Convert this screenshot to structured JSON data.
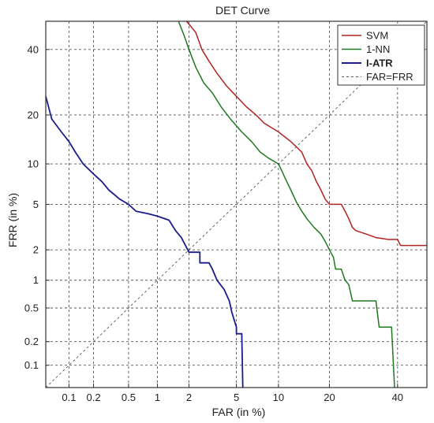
{
  "chart_data": {
    "type": "line",
    "title": "DET Curve",
    "xlabel": "FAR (in %)",
    "ylabel": "FRR (in %)",
    "x_scale": "normal-deviate",
    "y_scale": "normal-deviate",
    "xlim": [
      0.05,
      50
    ],
    "ylim": [
      0.05,
      50
    ],
    "x_ticks": [
      0.1,
      0.2,
      0.5,
      1,
      2,
      5,
      10,
      20,
      40
    ],
    "x_tick_labels": [
      "0.1",
      "0.2",
      "0.5",
      "1",
      "2",
      "5",
      "10",
      "20",
      "40"
    ],
    "y_ticks": [
      0.1,
      0.2,
      0.5,
      1,
      2,
      5,
      10,
      20,
      40
    ],
    "y_tick_labels": [
      "0.1",
      "0.2",
      "0.5",
      "1",
      "2",
      "5",
      "10",
      "20",
      "40"
    ],
    "grid": true,
    "legend_position": "top-right",
    "series": [
      {
        "name": "SVM",
        "color": "#b22222",
        "bold": false,
        "points": [
          [
            1.9,
            50
          ],
          [
            2.3,
            46
          ],
          [
            2.6,
            40
          ],
          [
            3.0,
            36
          ],
          [
            3.5,
            32
          ],
          [
            4.2,
            28
          ],
          [
            5.0,
            25
          ],
          [
            6.0,
            22
          ],
          [
            7.0,
            20
          ],
          [
            8.0,
            18
          ],
          [
            10.0,
            16
          ],
          [
            12.0,
            14
          ],
          [
            14.0,
            12
          ],
          [
            15.0,
            10
          ],
          [
            16.0,
            9
          ],
          [
            17.0,
            7.5
          ],
          [
            18.0,
            6.5
          ],
          [
            19.0,
            5.5
          ],
          [
            20.0,
            5.0
          ],
          [
            23.0,
            5.0
          ],
          [
            24.0,
            4.4
          ],
          [
            25.0,
            3.8
          ],
          [
            26.0,
            3.2
          ],
          [
            27.0,
            3.0
          ],
          [
            30.0,
            2.8
          ],
          [
            33.0,
            2.6
          ],
          [
            37.0,
            2.5
          ],
          [
            40.0,
            2.5
          ],
          [
            41.0,
            2.2
          ],
          [
            50.0,
            2.2
          ]
        ]
      },
      {
        "name": "1-NN",
        "color": "#1f7a1f",
        "bold": false,
        "points": [
          [
            1.6,
            50
          ],
          [
            1.8,
            45
          ],
          [
            2.0,
            40
          ],
          [
            2.3,
            34
          ],
          [
            2.7,
            29
          ],
          [
            3.2,
            26
          ],
          [
            3.8,
            22
          ],
          [
            4.5,
            19
          ],
          [
            5.5,
            16
          ],
          [
            6.5,
            14
          ],
          [
            7.5,
            12
          ],
          [
            8.5,
            11
          ],
          [
            10.0,
            10
          ],
          [
            10.5,
            9
          ],
          [
            11.0,
            8
          ],
          [
            12.0,
            6.5
          ],
          [
            13.0,
            5.2
          ],
          [
            14.0,
            4.4
          ],
          [
            15.0,
            3.8
          ],
          [
            16.5,
            3.2
          ],
          [
            18.0,
            2.8
          ],
          [
            19.0,
            2.4
          ],
          [
            20.0,
            2.0
          ],
          [
            21.0,
            1.7
          ],
          [
            21.5,
            1.3
          ],
          [
            23.0,
            1.3
          ],
          [
            24.0,
            1.0
          ],
          [
            25.0,
            0.9
          ],
          [
            26.0,
            0.6
          ],
          [
            33.0,
            0.6
          ],
          [
            34.0,
            0.3
          ],
          [
            38.0,
            0.3
          ],
          [
            39.0,
            0.05
          ]
        ]
      },
      {
        "name": "I-ATR",
        "color": "#1c1c8c",
        "bold": true,
        "points": [
          [
            0.05,
            25
          ],
          [
            0.06,
            19
          ],
          [
            0.08,
            16
          ],
          [
            0.1,
            14
          ],
          [
            0.12,
            12
          ],
          [
            0.15,
            10
          ],
          [
            0.2,
            8.5
          ],
          [
            0.25,
            7.5
          ],
          [
            0.3,
            6.5
          ],
          [
            0.4,
            5.5
          ],
          [
            0.5,
            5.0
          ],
          [
            0.6,
            4.4
          ],
          [
            0.8,
            4.2
          ],
          [
            1.0,
            4.0
          ],
          [
            1.3,
            3.7
          ],
          [
            1.5,
            3.0
          ],
          [
            1.7,
            2.6
          ],
          [
            2.0,
            1.9
          ],
          [
            2.5,
            1.9
          ],
          [
            2.5,
            1.5
          ],
          [
            3.0,
            1.5
          ],
          [
            3.2,
            1.3
          ],
          [
            3.5,
            1.0
          ],
          [
            4.0,
            0.8
          ],
          [
            4.4,
            0.6
          ],
          [
            4.6,
            0.45
          ],
          [
            5.0,
            0.3
          ],
          [
            5.0,
            0.25
          ],
          [
            5.5,
            0.25
          ],
          [
            5.6,
            0.05
          ]
        ]
      },
      {
        "name": "FAR=FRR",
        "color": "#555555",
        "dashed": true,
        "bold": false,
        "points": [
          [
            0.05,
            0.05
          ],
          [
            50,
            50
          ]
        ]
      }
    ]
  }
}
